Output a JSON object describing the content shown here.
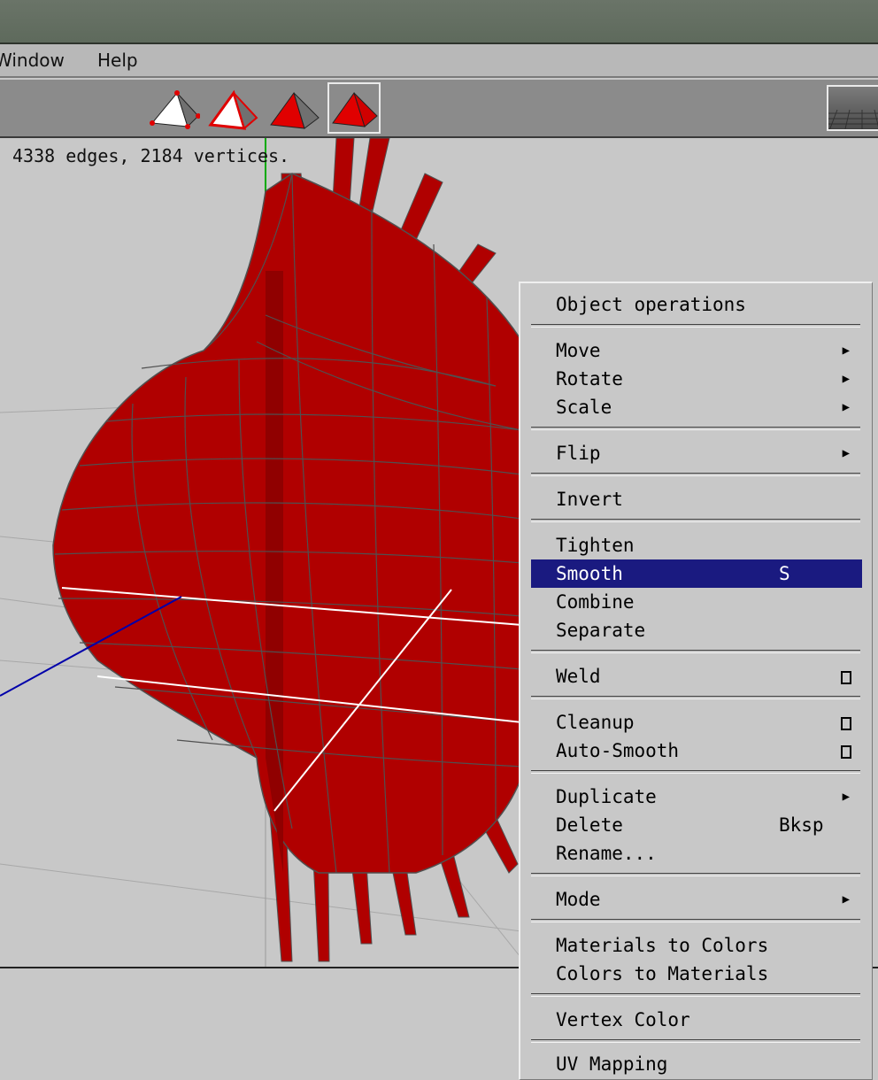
{
  "menubar": {
    "window_label": "Window",
    "help_label": "Help"
  },
  "toolbar": {
    "modes": [
      "vertex-select-mode",
      "edge-select-mode",
      "face-select-mode",
      "body-select-mode"
    ],
    "active_mode": "body-select-mode"
  },
  "viewport": {
    "info_text": "4338 edges, 2184 vertices.",
    "colors": {
      "background": "#c8c8c8",
      "mesh": "#b00000",
      "mesh_edges": "#505050",
      "selected_edges": "#ffffff",
      "y_axis": "#00aa00",
      "z_axis": "#0000aa"
    }
  },
  "context_menu": {
    "title": "Object operations",
    "items": [
      {
        "label": "Move",
        "submenu": true
      },
      {
        "label": "Rotate",
        "submenu": true
      },
      {
        "label": "Scale",
        "submenu": true
      },
      {
        "label": "Flip",
        "submenu": true
      },
      {
        "label": "Invert"
      },
      {
        "label": "Tighten"
      },
      {
        "label": "Smooth",
        "shortcut": "S",
        "highlighted": true
      },
      {
        "label": "Combine"
      },
      {
        "label": "Separate"
      },
      {
        "label": "Weld",
        "option_box": true
      },
      {
        "label": "Cleanup",
        "option_box": true
      },
      {
        "label": "Auto-Smooth",
        "option_box": true
      },
      {
        "label": "Duplicate",
        "submenu": true
      },
      {
        "label": "Delete",
        "shortcut": "Bksp"
      },
      {
        "label": "Rename..."
      },
      {
        "label": "Mode",
        "submenu": true
      },
      {
        "label": "Materials to Colors"
      },
      {
        "label": "Colors to Materials"
      },
      {
        "label": "Vertex Color"
      },
      {
        "label": "UV Mapping"
      }
    ],
    "highlight_color": "#1a1a80"
  }
}
